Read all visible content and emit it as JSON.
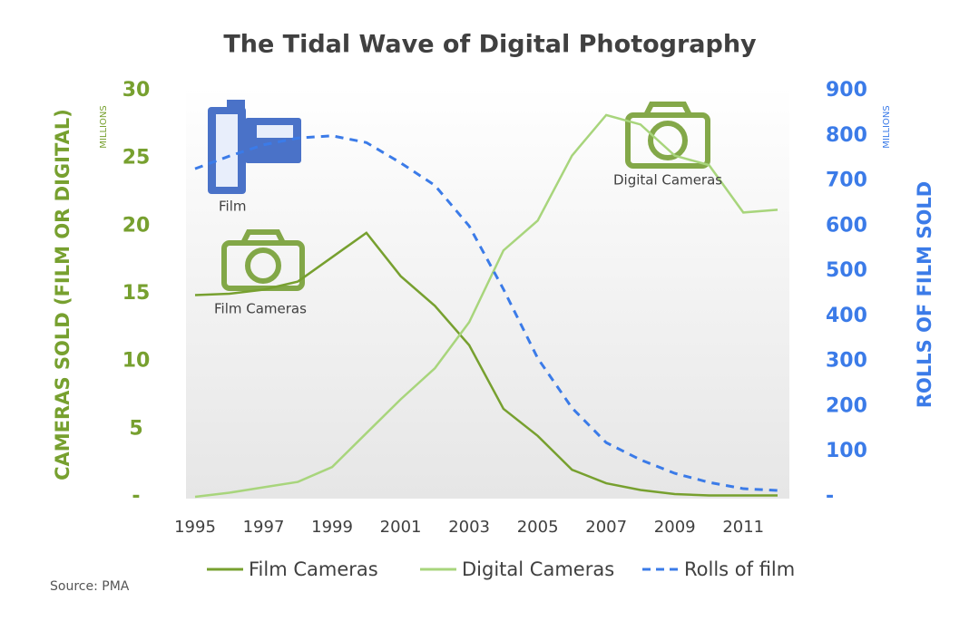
{
  "chart_data": {
    "type": "line",
    "title": "The Tidal Wave of Digital Photography",
    "y_label": "CAMERAS SOLD (FILM OR DIGITAL)",
    "y_unit": "MILLIONS",
    "y2_label": "ROLLS OF FILM SOLD",
    "y2_unit": "MILLIONS",
    "source": "Source: PMA",
    "annotations": [
      "Film",
      "Film Cameras",
      "Digital Cameras"
    ],
    "x": [
      1995,
      1996,
      1997,
      1998,
      1999,
      2000,
      2001,
      2002,
      2003,
      2004,
      2005,
      2006,
      2007,
      2008,
      2009,
      2010,
      2011,
      2012
    ],
    "xlim": [
      1995,
      2012
    ],
    "xticks": [
      1995,
      1997,
      1999,
      2001,
      2003,
      2005,
      2007,
      2009,
      2011
    ],
    "ylim": [
      0,
      30
    ],
    "yticks": [
      {
        "value": 0,
        "label": "-"
      },
      5,
      10,
      15,
      20,
      25,
      30
    ],
    "y2lim": [
      0,
      900
    ],
    "y2ticks": [
      {
        "value": 0,
        "label": "-"
      },
      100,
      200,
      300,
      400,
      500,
      600,
      700,
      800,
      900
    ],
    "legend": "bottom",
    "series": [
      {
        "name": "Film Cameras",
        "color": "#77a02f",
        "dash": false,
        "values": [
          14.9,
          15.0,
          15.3,
          15.9,
          17.7,
          19.5,
          16.3,
          14.1,
          11.2,
          6.5,
          4.5,
          2.0,
          1.0,
          0.5,
          0.2,
          0.1,
          0.1,
          0.1
        ]
      },
      {
        "name": "Digital Cameras",
        "color": "#a8d57c",
        "dash": false,
        "values": [
          0,
          0.3,
          0.7,
          1.1,
          2.2,
          4.7,
          7.2,
          9.5,
          12.9,
          18.2,
          20.4,
          25.2,
          28.2,
          27.5,
          25.2,
          24.5,
          21.0,
          21.2
        ]
      },
      {
        "name": "Rolls of film",
        "color": "#3b7be8",
        "dash": true,
        "axis": "y2",
        "values": [
          727,
          755,
          780,
          795,
          800,
          785,
          740,
          690,
          600,
          460,
          307,
          197,
          120,
          82,
          52,
          32,
          18,
          14
        ]
      }
    ]
  }
}
